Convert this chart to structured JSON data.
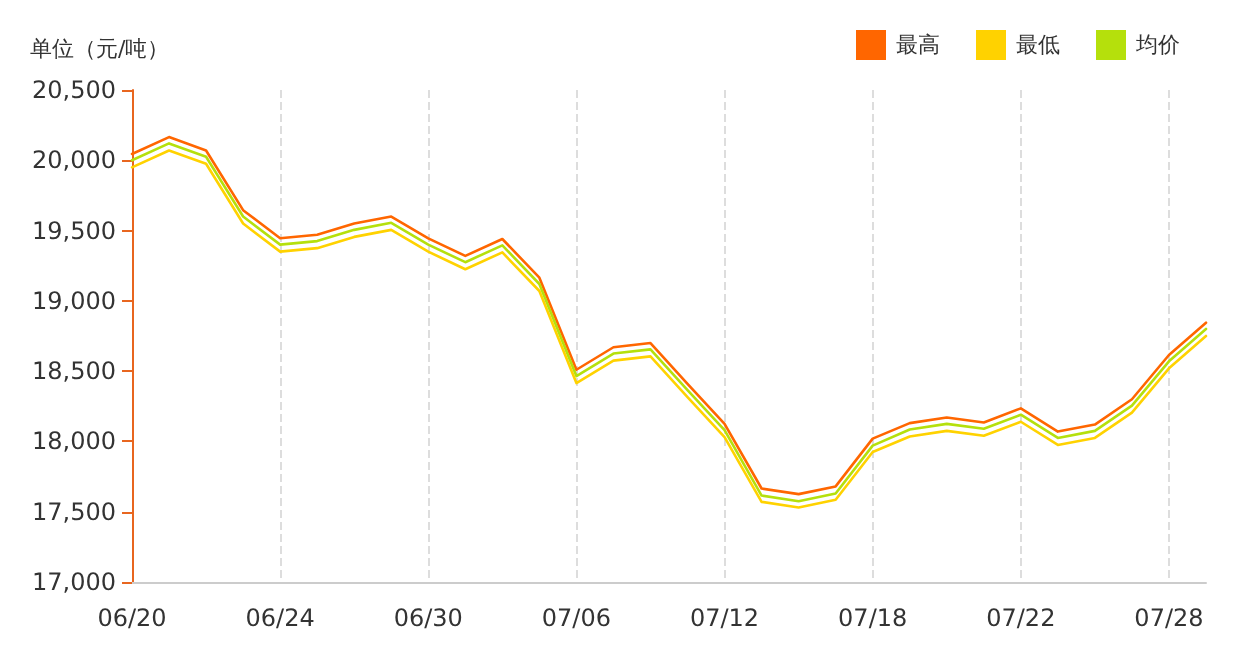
{
  "chart_data": {
    "type": "line",
    "ylabel": "单位（元/吨）",
    "categories": [
      "06/20",
      null,
      null,
      null,
      "06/24",
      null,
      null,
      null,
      "06/30",
      null,
      null,
      null,
      "07/06",
      null,
      null,
      null,
      "07/12",
      null,
      null,
      null,
      "07/18",
      null,
      null,
      null,
      "07/22",
      null,
      null,
      null,
      "07/28",
      null
    ],
    "series": [
      {
        "name": "最高",
        "color": "#ff6600",
        "values": [
          20045,
          20165,
          20070,
          19645,
          19445,
          19470,
          19550,
          19600,
          19445,
          19320,
          19440,
          19165,
          18510,
          18670,
          18700,
          18410,
          18125,
          17665,
          17625,
          17680,
          18020,
          18130,
          18170,
          18135,
          18235,
          18070,
          18120,
          18300,
          18615,
          18845
        ]
      },
      {
        "name": "最低",
        "color": "#ffd200",
        "values": [
          19950,
          20070,
          19975,
          19550,
          19350,
          19375,
          19455,
          19505,
          19350,
          19225,
          19345,
          19070,
          18415,
          18575,
          18605,
          18315,
          18030,
          17570,
          17530,
          17585,
          17925,
          18035,
          18075,
          18040,
          18140,
          17975,
          18025,
          18205,
          18520,
          18750
        ]
      },
      {
        "name": "均价",
        "color": "#b5e00c",
        "values": [
          20000,
          20120,
          20025,
          19600,
          19400,
          19425,
          19505,
          19555,
          19400,
          19275,
          19395,
          19120,
          18465,
          18625,
          18655,
          18365,
          18080,
          17615,
          17575,
          17630,
          17970,
          18085,
          18125,
          18090,
          18190,
          18025,
          18075,
          18255,
          18570,
          18800
        ]
      }
    ],
    "ylim": [
      17000,
      20500
    ],
    "yticks": [
      {
        "value": 17000,
        "label": "17,000"
      },
      {
        "value": 17500,
        "label": "17,500"
      },
      {
        "value": 18000,
        "label": "18,000"
      },
      {
        "value": 18500,
        "label": "18,500"
      },
      {
        "value": 19000,
        "label": "19,000"
      },
      {
        "value": 19500,
        "label": "19,500"
      },
      {
        "value": 20000,
        "label": "20,000"
      },
      {
        "value": 20500,
        "label": "20,500"
      }
    ],
    "grid": "x",
    "legend": "top right",
    "marker": "none",
    "line_style": "solid"
  }
}
